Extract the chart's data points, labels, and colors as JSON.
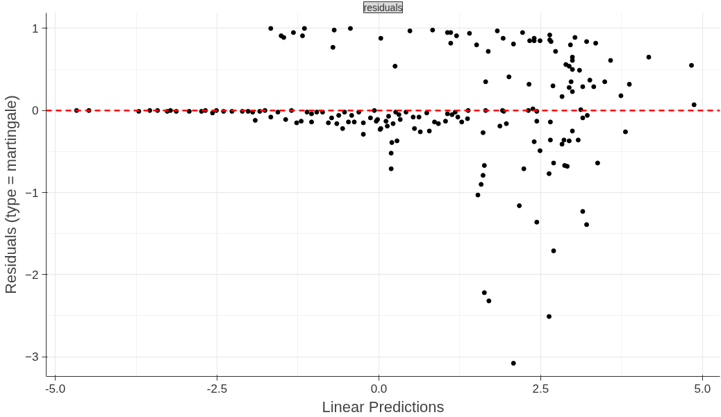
{
  "chart_data": {
    "type": "scatter",
    "title": "residuals",
    "xlabel": "Linear Predictions",
    "ylabel": "Residuals (type = martingale)",
    "xlim": [
      -5.14,
      5.27
    ],
    "ylim": [
      -3.24,
      1.19
    ],
    "xticks": [
      {
        "value": -5,
        "label": "-5.0"
      },
      {
        "value": -2.5,
        "label": "-2.5"
      },
      {
        "value": 0,
        "label": "0.0"
      },
      {
        "value": 2.5,
        "label": "2.5"
      },
      {
        "value": 5,
        "label": "5.0"
      }
    ],
    "yticks": [
      -3,
      -2,
      -1,
      0,
      1
    ],
    "grid": true,
    "marker": "circle",
    "ref_lines": [
      {
        "axis": "y",
        "value": 0,
        "label": null,
        "color": "#ff0000",
        "line_style": "dashed"
      }
    ],
    "series": [
      {
        "color": "#000000",
        "x": [
          -1.67,
          -1.51,
          -1.47,
          -1.32,
          -1.18,
          -1.15,
          -0.71,
          -0.69,
          -0.44,
          0.03,
          -4.67,
          -4.48,
          -3.71,
          -3.54,
          -3.42,
          -3.27,
          -3.22,
          -3.13,
          -2.93,
          -2.74,
          -2.68,
          -2.57,
          -2.51,
          -2.4,
          -2.27,
          -2.11,
          -2.02,
          -1.91,
          -1.95,
          -1.84,
          -1.76,
          -1.67,
          -1.56,
          -1.44,
          -1.35,
          -1.27,
          -1.2,
          -1.11,
          -1.04,
          -1.04,
          -0.96,
          -0.87,
          -0.78,
          -0.73,
          -0.65,
          -0.62,
          -0.56,
          -0.53,
          -0.47,
          -0.42,
          -0.38,
          -0.31,
          -0.24,
          -0.24,
          -0.13,
          -0.07,
          -0.04,
          0.03,
          0.48,
          0.83,
          1.06,
          1.11,
          1.2,
          1.11,
          1.4,
          1.51,
          1.83,
          1.92,
          1.69,
          2.08,
          2.22,
          2.33,
          2.4,
          2.4,
          2.49,
          2.64,
          2.64,
          2.66,
          2.73,
          2.96,
          3.03,
          3.21,
          3.35,
          2.99,
          2.99,
          2.89,
          2.94,
          2.99,
          3.1,
          3.58,
          4.17,
          4.83,
          4.87,
          0.25,
          2.01,
          1.65,
          2.32,
          2.69,
          2.97,
          2.94,
          2.99,
          3.15,
          3.26,
          3.32,
          3.49,
          2.83,
          3.74,
          3.87,
          3.81,
          1.38,
          1.65,
          1.91,
          1.93,
          2.31,
          2.38,
          2.44,
          3.12,
          0.42,
          0.26,
          0.31,
          0.33,
          0.15,
          0.11,
          0.13,
          0.02,
          -0.02,
          0.22,
          0.53,
          0.62,
          0.74,
          0.55,
          0.64,
          0.78,
          0.86,
          0.92,
          1.03,
          1.06,
          1.13,
          1.18,
          1.22,
          1.28,
          1.37,
          1.61,
          1.87,
          1.97,
          2.44,
          2.65,
          2.99,
          3.15,
          3.22,
          2.4,
          2.65,
          2.83,
          2.86,
          2.94,
          3.08,
          2.49,
          0.2,
          0.28,
          0.19,
          0.19,
          1.63,
          1.61,
          1.58,
          1.53,
          2.24,
          2.63,
          2.7,
          2.87,
          2.91,
          3.38,
          2.17,
          3.15,
          3.21,
          2.44,
          2.7,
          1.63,
          1.7,
          2.63,
          2.08
        ],
        "values": [
          1.0,
          0.91,
          0.89,
          0.95,
          0.91,
          1.0,
          0.77,
          0.98,
          1.0,
          0.88,
          0,
          0,
          -0.01,
          0,
          0,
          -0.01,
          0,
          -0.01,
          -0.01,
          -0.01,
          0,
          -0.03,
          0,
          -0.01,
          -0.01,
          -0.01,
          -0.01,
          -0.12,
          -0.02,
          -0.01,
          0,
          -0.08,
          -0.02,
          -0.11,
          0,
          -0.15,
          -0.13,
          -0.02,
          -0.04,
          -0.14,
          -0.02,
          -0.02,
          -0.15,
          -0.09,
          -0.16,
          -0.06,
          -0.22,
          -0.02,
          -0.14,
          -0.06,
          -0.14,
          -0.02,
          -0.29,
          -0.15,
          -0.09,
          0,
          -0.13,
          -0.22,
          0.97,
          0.98,
          0.95,
          0.95,
          0.91,
          0.82,
          0.94,
          0.8,
          0.97,
          0.88,
          0.72,
          0.81,
          0.95,
          0.85,
          0.88,
          0.85,
          0.85,
          0.92,
          0.86,
          0.84,
          0.72,
          0.8,
          0.89,
          0.84,
          0.82,
          0.65,
          0.61,
          0.56,
          0.54,
          0.5,
          0.49,
          0.61,
          0.65,
          0.55,
          0.07,
          0.54,
          0.41,
          0.35,
          0.32,
          0.3,
          0.35,
          0.28,
          0.23,
          0.29,
          0.37,
          0.29,
          0.35,
          0.17,
          0.18,
          0.32,
          -0.26,
          0,
          0,
          0,
          -0.01,
          0,
          0.02,
          -0.01,
          0.01,
          -0.02,
          -0.02,
          -0.05,
          -0.11,
          -0.07,
          -0.13,
          -0.19,
          -0.23,
          -0.11,
          -0.16,
          -0.08,
          -0.08,
          -0.03,
          -0.22,
          -0.26,
          -0.25,
          -0.14,
          -0.16,
          -0.13,
          -0.04,
          -0.05,
          -0.02,
          -0.08,
          -0.14,
          -0.1,
          -0.27,
          -0.19,
          -0.16,
          -0.13,
          -0.14,
          -0.25,
          -0.09,
          -0.06,
          -0.38,
          -0.36,
          -0.41,
          -0.36,
          -0.37,
          -0.36,
          -0.49,
          -0.39,
          -0.37,
          -0.52,
          -0.71,
          -0.67,
          -0.79,
          -0.9,
          -1.03,
          -0.71,
          -0.77,
          -0.64,
          -0.67,
          -0.68,
          -0.64,
          -1.16,
          -1.23,
          -1.39,
          -1.36,
          -1.71,
          -2.22,
          -2.32,
          -2.51,
          -3.08
        ]
      }
    ]
  }
}
